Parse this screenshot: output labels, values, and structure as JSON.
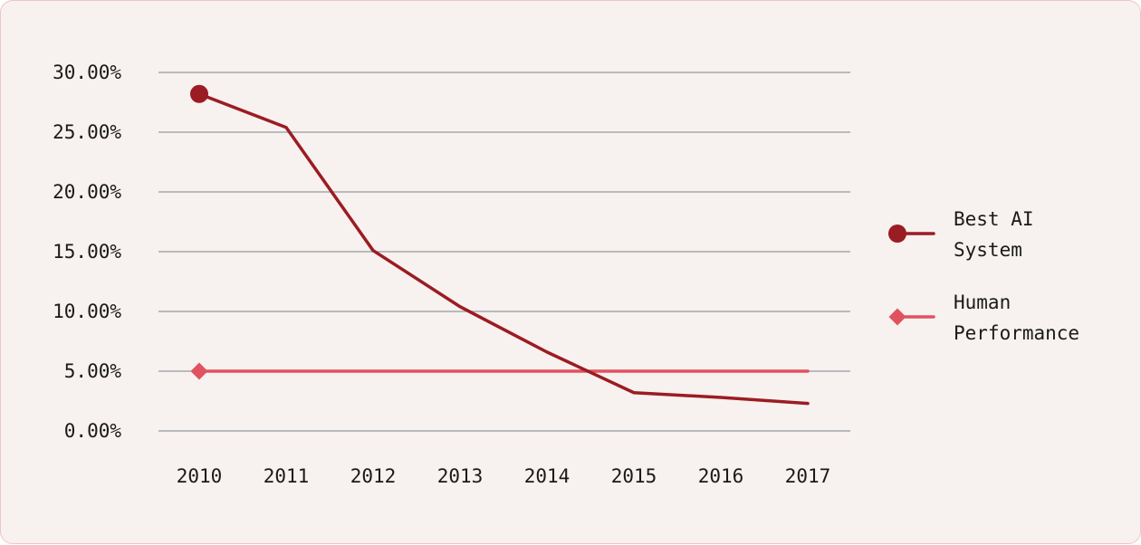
{
  "chart_data": {
    "type": "line",
    "categories": [
      "2010",
      "2011",
      "2012",
      "2013",
      "2014",
      "2015",
      "2016",
      "2017"
    ],
    "ylim": [
      0,
      30
    ],
    "yticks": [
      "0.00%",
      "5.00%",
      "10.00%",
      "15.00%",
      "20.00%",
      "25.00%",
      "30.00%"
    ],
    "ytick_values": [
      0,
      5,
      10,
      15,
      20,
      25,
      30
    ],
    "grid": true,
    "legend_position": "right",
    "series": [
      {
        "name": "Best AI System",
        "legend_lines": [
          "Best AI",
          "System"
        ],
        "values": [
          28.2,
          25.4,
          15.1,
          10.4,
          6.6,
          3.2,
          2.8,
          2.3
        ],
        "color": "#9b1c22",
        "marker": "circle"
      },
      {
        "name": "Human Performance",
        "legend_lines": [
          "Human",
          "Performance"
        ],
        "values": [
          5.0,
          5.0,
          5.0,
          5.0,
          5.0,
          5.0,
          5.0,
          5.0
        ],
        "color": "#e0525f",
        "marker": "diamond"
      }
    ]
  },
  "colors": {
    "background": "#f7f1ef",
    "border": "#f0c4c8",
    "grid": "#a5a8ae",
    "text": "#1a1a1a"
  }
}
